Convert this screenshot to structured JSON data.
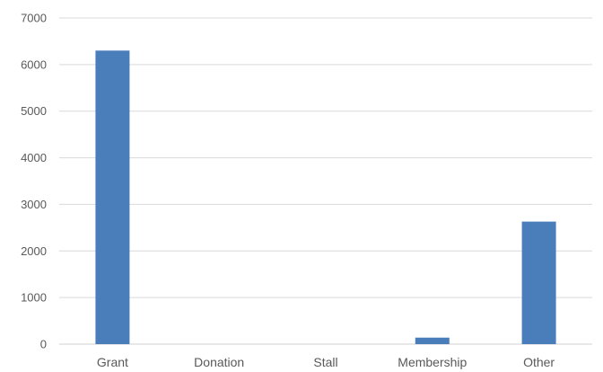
{
  "chart_data": {
    "type": "bar",
    "categories": [
      "Grant",
      "Donation",
      "Stall",
      "Membership",
      "Other"
    ],
    "values": [
      6300,
      0,
      0,
      140,
      2630
    ],
    "ylim": [
      0,
      7000
    ],
    "yticks": [
      "0",
      "1000",
      "2000",
      "3000",
      "4000",
      "5000",
      "6000",
      "7000"
    ],
    "grid": true,
    "legend": "none",
    "title": "",
    "xlabel": "",
    "ylabel": "",
    "colors": {
      "bar": "#4a7ebb",
      "grid": "#d9d9d9",
      "tick_text": "#595959"
    }
  }
}
